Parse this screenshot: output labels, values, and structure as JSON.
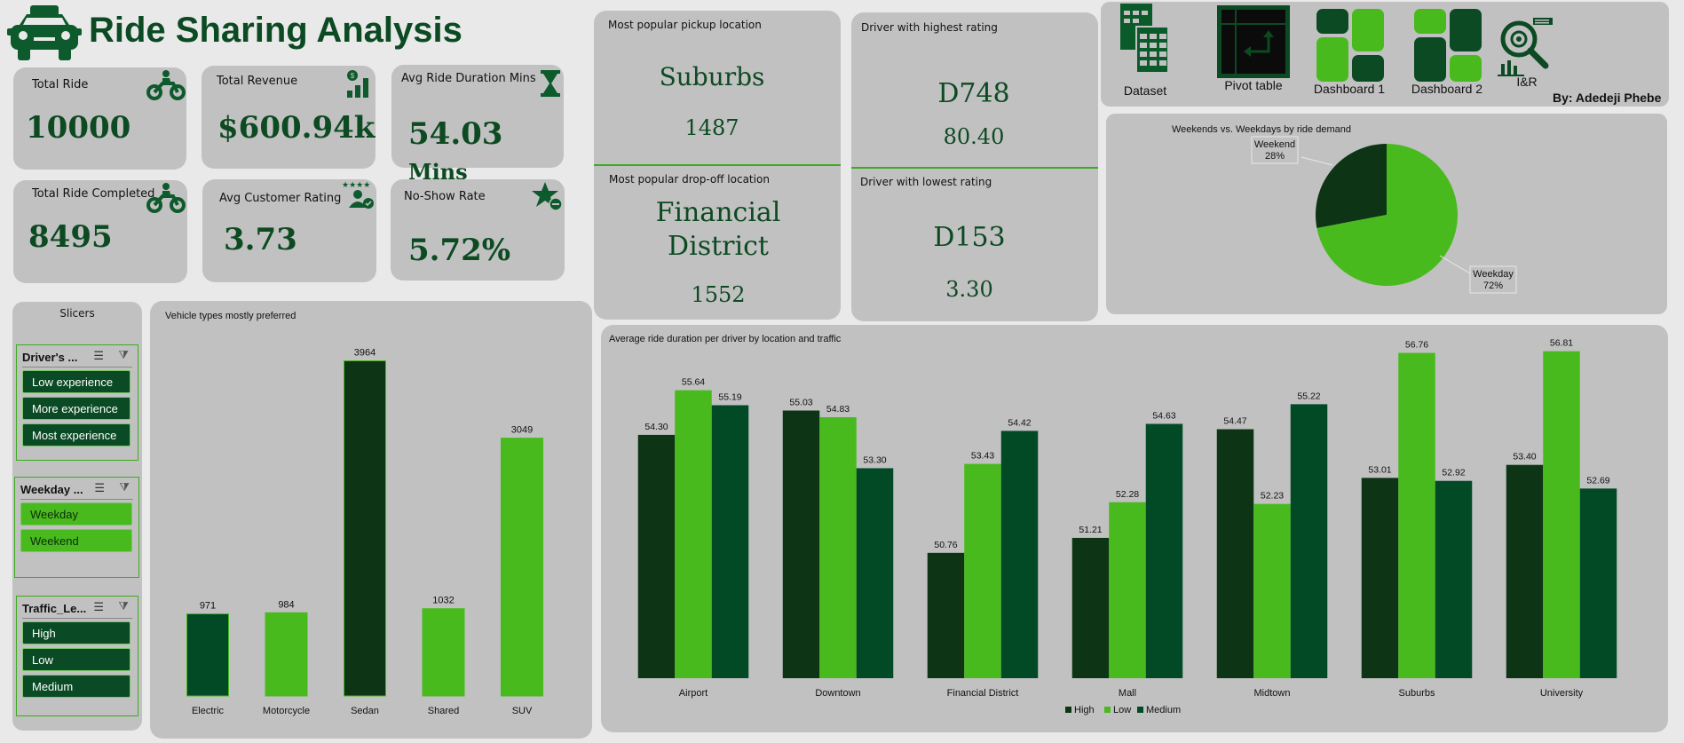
{
  "header": {
    "title": "Ride Sharing Analysis",
    "author": "By: Adedeji Phebe"
  },
  "nav": [
    {
      "label": "Dataset",
      "icon": "spreadsheet-icon"
    },
    {
      "label": "Pivot table",
      "icon": "pivot-table-icon"
    },
    {
      "label": "Dashboard 1",
      "icon": "dashboard-icon"
    },
    {
      "label": "Dashboard 2",
      "icon": "dashboard-icon"
    },
    {
      "label": "I&R",
      "icon": "insights-icon"
    }
  ],
  "kpis": {
    "total_ride": {
      "label": "Total Ride",
      "value": "10000"
    },
    "total_revenue": {
      "label": "Total Revenue",
      "value": "$600.94k"
    },
    "avg_duration": {
      "label": "Avg Ride Duration Mins",
      "value": "54.03",
      "unit": "Mins"
    },
    "total_completed": {
      "label": "Total Ride Completed",
      "value": "8495"
    },
    "avg_rating": {
      "label": "Avg Customer Rating",
      "value": "3.73"
    },
    "no_show": {
      "label": "No-Show Rate",
      "value": "5.72%"
    }
  },
  "locations": {
    "pickup_label": "Most popular pickup location",
    "pickup_name": "Suburbs",
    "pickup_count": "1487",
    "dropoff_label": "Most popular drop-off location",
    "dropoff_name_1": "Financial",
    "dropoff_name_2": "District",
    "dropoff_count": "1552"
  },
  "drivers": {
    "highest_label": "Driver with highest rating",
    "highest_id": "D748",
    "highest_rating": "80.40",
    "lowest_label": "Driver with lowest rating",
    "lowest_id": "D153",
    "lowest_rating": "3.30"
  },
  "slicers": {
    "title": "Slicers",
    "groups": [
      {
        "header": "Driver's ...",
        "items": [
          "Low experience",
          "More experience",
          "Most experience"
        ]
      },
      {
        "header": "Weekday ...",
        "items": [
          "Weekday",
          "Weekend"
        ]
      },
      {
        "header": "Traffic_Le...",
        "items": [
          "High",
          "Low",
          "Medium"
        ]
      }
    ]
  },
  "colors": {
    "dark": "#0d3414",
    "light": "#49ba1e",
    "medium": "#024a26",
    "panel": "#c1c1c1"
  },
  "chart_data": [
    {
      "type": "pie",
      "title": "Weekends vs. Weekdays by ride demand",
      "categories": [
        "Weekend",
        "Weekday"
      ],
      "values": [
        28,
        72
      ],
      "labels": [
        "28%",
        "72%"
      ]
    },
    {
      "type": "bar",
      "title": "Vehicle types mostly preferred",
      "categories": [
        "Electric",
        "Motorcycle",
        "Sedan",
        "Shared",
        "SUV"
      ],
      "values": [
        971,
        984,
        3964,
        1032,
        3049
      ],
      "ylim": [
        0,
        4200
      ]
    },
    {
      "type": "bar",
      "title": "Average ride duration per driver by location and traffic",
      "categories": [
        "Airport",
        "Downtown",
        "Financial District",
        "Mall",
        "Midtown",
        "Suburbs",
        "University"
      ],
      "series": [
        {
          "name": "High",
          "values": [
            54.3,
            55.03,
            50.76,
            51.21,
            54.47,
            53.01,
            53.4
          ]
        },
        {
          "name": "Low",
          "values": [
            55.64,
            54.83,
            53.43,
            52.28,
            52.23,
            56.76,
            56.81
          ]
        },
        {
          "name": "Medium",
          "values": [
            55.19,
            53.3,
            54.42,
            54.63,
            55.22,
            52.92,
            52.69
          ]
        }
      ],
      "ylim": [
        47,
        57.6
      ],
      "legend": "bottom"
    }
  ]
}
